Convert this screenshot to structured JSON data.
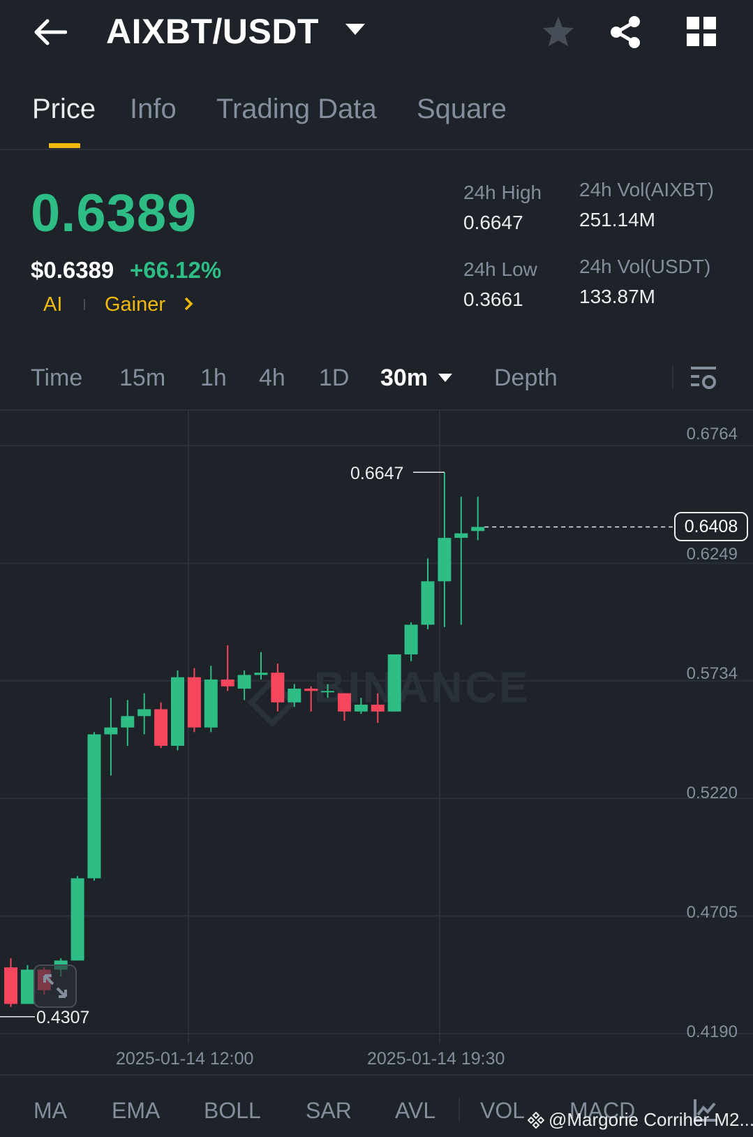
{
  "header": {
    "pair": "AIXBT/USDT",
    "icons": [
      "back-arrow-icon",
      "star-icon",
      "share-icon",
      "grid-icon"
    ]
  },
  "tabs": [
    "Price",
    "Info",
    "Trading Data",
    "Square"
  ],
  "active_tab": "Price",
  "price": {
    "last": "0.6389",
    "usd": "$0.6389",
    "change": "+66.12%",
    "tags": [
      "AI",
      "Gainer"
    ]
  },
  "stats": {
    "high_label": "24h High",
    "high_value": "0.6647",
    "low_label": "24h Low",
    "low_value": "0.3661",
    "vol_base_label": "24h Vol(AIXBT)",
    "vol_base_value": "251.14M",
    "vol_quote_label": "24h Vol(USDT)",
    "vol_quote_value": "133.87M"
  },
  "intervals": [
    "Time",
    "15m",
    "1h",
    "4h",
    "1D",
    "30m",
    "Depth"
  ],
  "active_interval": "30m",
  "colors": {
    "up": "#2ebd85",
    "down": "#f6465d",
    "accent": "#f0b90b",
    "bg": "#1e2329"
  },
  "chart_data": {
    "type": "candlestick",
    "y_ticks": [
      "0.6764",
      "0.6249",
      "0.5734",
      "0.5220",
      "0.4705",
      "0.4190"
    ],
    "x_ticks": [
      "2025-01-14 12:00",
      "2025-01-14 19:30"
    ],
    "ylim": [
      0.419,
      0.6764
    ],
    "grid": true,
    "current_price_label": "0.6408",
    "current_price": 0.6408,
    "high_marker": "0.6647",
    "low_marker": "0.4307",
    "candles": [
      {
        "o": 0.448,
        "h": 0.452,
        "l": 0.4307,
        "c": 0.432
      },
      {
        "o": 0.432,
        "h": 0.449,
        "l": 0.432,
        "c": 0.447
      },
      {
        "o": 0.447,
        "h": 0.448,
        "l": 0.436,
        "c": 0.438
      },
      {
        "o": 0.447,
        "h": 0.452,
        "l": 0.444,
        "c": 0.451
      },
      {
        "o": 0.451,
        "h": 0.488,
        "l": 0.451,
        "c": 0.487
      },
      {
        "o": 0.487,
        "h": 0.551,
        "l": 0.486,
        "c": 0.55
      },
      {
        "o": 0.55,
        "h": 0.566,
        "l": 0.532,
        "c": 0.553
      },
      {
        "o": 0.553,
        "h": 0.565,
        "l": 0.545,
        "c": 0.558
      },
      {
        "o": 0.558,
        "h": 0.568,
        "l": 0.55,
        "c": 0.561
      },
      {
        "o": 0.561,
        "h": 0.564,
        "l": 0.544,
        "c": 0.545
      },
      {
        "o": 0.545,
        "h": 0.578,
        "l": 0.543,
        "c": 0.575
      },
      {
        "o": 0.575,
        "h": 0.579,
        "l": 0.551,
        "c": 0.553
      },
      {
        "o": 0.553,
        "h": 0.58,
        "l": 0.551,
        "c": 0.574
      },
      {
        "o": 0.574,
        "h": 0.589,
        "l": 0.569,
        "c": 0.571
      },
      {
        "o": 0.57,
        "h": 0.578,
        "l": 0.565,
        "c": 0.576
      },
      {
        "o": 0.576,
        "h": 0.586,
        "l": 0.574,
        "c": 0.577
      },
      {
        "o": 0.577,
        "h": 0.581,
        "l": 0.56,
        "c": 0.564
      },
      {
        "o": 0.564,
        "h": 0.572,
        "l": 0.562,
        "c": 0.57
      },
      {
        "o": 0.57,
        "h": 0.571,
        "l": 0.56,
        "c": 0.569
      },
      {
        "o": 0.569,
        "h": 0.572,
        "l": 0.566,
        "c": 0.569
      },
      {
        "o": 0.568,
        "h": 0.568,
        "l": 0.556,
        "c": 0.56
      },
      {
        "o": 0.56,
        "h": 0.566,
        "l": 0.559,
        "c": 0.563
      },
      {
        "o": 0.563,
        "h": 0.568,
        "l": 0.555,
        "c": 0.56
      },
      {
        "o": 0.56,
        "h": 0.585,
        "l": 0.56,
        "c": 0.585
      },
      {
        "o": 0.585,
        "h": 0.599,
        "l": 0.582,
        "c": 0.598
      },
      {
        "o": 0.598,
        "h": 0.627,
        "l": 0.596,
        "c": 0.617
      },
      {
        "o": 0.617,
        "h": 0.6647,
        "l": 0.597,
        "c": 0.636
      },
      {
        "o": 0.636,
        "h": 0.654,
        "l": 0.598,
        "c": 0.638
      },
      {
        "o": 0.639,
        "h": 0.654,
        "l": 0.635,
        "c": 0.6408
      }
    ]
  },
  "indicators": [
    "MA",
    "EMA",
    "BOLL",
    "SAR",
    "AVL",
    "VOL",
    "MACD"
  ],
  "watermark": {
    "chart": "BINANCE",
    "user": "@Margorie Corriher M2..."
  }
}
